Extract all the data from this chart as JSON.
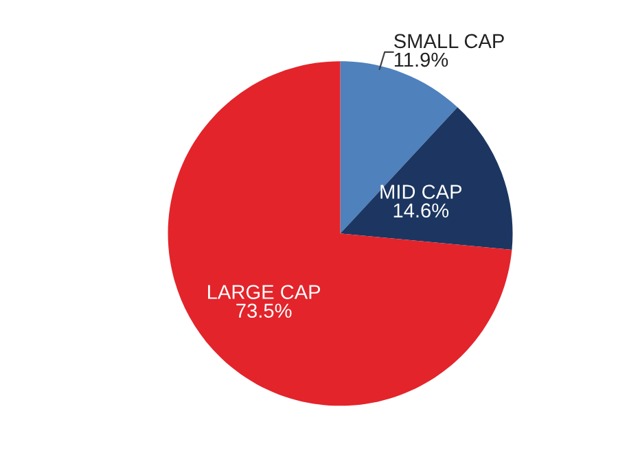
{
  "chart_data": {
    "type": "pie",
    "categories": [
      "SMALL CAP",
      "MID CAP",
      "LARGE CAP"
    ],
    "values": [
      11.9,
      14.6,
      73.5
    ],
    "colors": [
      "#4f81bd",
      "#1c3661",
      "#e3242b"
    ],
    "value_labels": [
      "11.9%",
      "14.6%",
      "73.5%"
    ]
  }
}
